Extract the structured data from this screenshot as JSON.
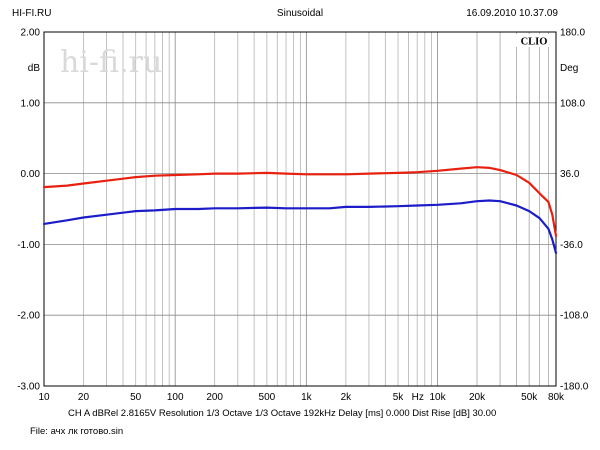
{
  "header": {
    "left": "HI-FI.RU",
    "center": "Sinusoidal",
    "right": "16.09.2010 10.37.09"
  },
  "watermark": "hi-fi.ru",
  "brand": "CLIO",
  "footer": {
    "settings": "CH A   dBRel 2.8165V   Resolution 1/3 Octave   1/3 Octave   192kHz   Delay [ms] 0.000   Dist Rise [dB] 30.00",
    "file": "File: ачх лк готово.sin"
  },
  "chart_data": {
    "type": "line",
    "left_axis": {
      "label": "dB",
      "range": [
        -3.0,
        2.0
      ],
      "ticks": [
        "2.00",
        "1.00",
        "0.00",
        "-1.00",
        "-2.00",
        "-3.00"
      ]
    },
    "right_axis": {
      "label": "Deg",
      "range": [
        -180.0,
        180.0
      ],
      "ticks": [
        "180.0",
        "108.0",
        "36.0",
        "-36.0",
        "-108.0",
        "-180.0"
      ]
    },
    "x_axis": {
      "scale": "log",
      "range": [
        10,
        80000
      ],
      "unit_label": "Hz",
      "tick_labels": [
        "10",
        "20",
        "50",
        "100",
        "200",
        "500",
        "1k",
        "2k",
        "5k",
        "10k",
        "20k",
        "50k",
        "80k"
      ]
    },
    "grid": true,
    "series": [
      {
        "color": "#e8200f",
        "x": [
          10,
          15,
          20,
          30,
          50,
          70,
          100,
          150,
          200,
          300,
          500,
          700,
          1000,
          1500,
          2000,
          3000,
          5000,
          7000,
          10000,
          15000,
          20000,
          25000,
          30000,
          40000,
          50000,
          60000,
          70000,
          75000,
          80000
        ],
        "y": [
          -0.19,
          -0.17,
          -0.14,
          -0.1,
          -0.05,
          -0.03,
          -0.02,
          -0.01,
          0.0,
          0.0,
          0.01,
          0.0,
          -0.01,
          -0.01,
          -0.01,
          0.0,
          0.01,
          0.02,
          0.04,
          0.07,
          0.09,
          0.08,
          0.05,
          -0.02,
          -0.13,
          -0.28,
          -0.4,
          -0.58,
          -0.88
        ]
      },
      {
        "color": "#1c1cc8",
        "x": [
          10,
          15,
          20,
          30,
          50,
          70,
          100,
          150,
          200,
          300,
          500,
          700,
          1000,
          1500,
          2000,
          3000,
          5000,
          7000,
          10000,
          15000,
          20000,
          25000,
          30000,
          40000,
          50000,
          60000,
          70000,
          75000,
          80000
        ],
        "y": [
          -0.71,
          -0.66,
          -0.62,
          -0.58,
          -0.53,
          -0.52,
          -0.5,
          -0.5,
          -0.49,
          -0.49,
          -0.48,
          -0.49,
          -0.49,
          -0.49,
          -0.47,
          -0.47,
          -0.46,
          -0.45,
          -0.44,
          -0.42,
          -0.39,
          -0.38,
          -0.39,
          -0.45,
          -0.53,
          -0.63,
          -0.78,
          -0.93,
          -1.12
        ]
      }
    ]
  }
}
